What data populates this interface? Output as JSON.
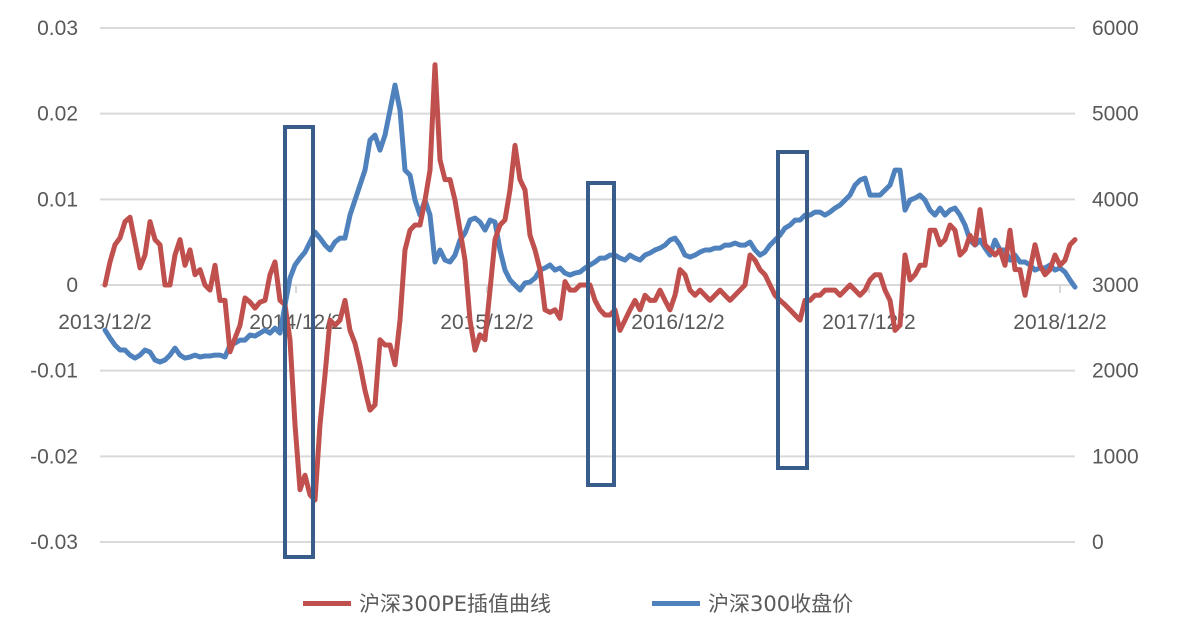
{
  "chart_data": {
    "type": "line",
    "title": "",
    "x_start": "2013/12/2",
    "x_step_note": "equally spaced samples from 2013/12/2 to end of 2018/12",
    "x_tick_labels": [
      "2013/12/2",
      "2014/12/2",
      "2015/12/2",
      "2016/12/2",
      "2017/12/2",
      "2018/12/2"
    ],
    "y_left": {
      "ticks": [
        "0.03",
        "0.02",
        "0.01",
        "0",
        "-0.01",
        "-0.02",
        "-0.03"
      ],
      "range": [
        -0.03,
        0.03
      ]
    },
    "y_right": {
      "ticks": [
        "6000",
        "5000",
        "4000",
        "3000",
        "2000",
        "1000",
        "0"
      ],
      "range": [
        0,
        6000
      ]
    },
    "grid": true,
    "legend_position": "bottom",
    "series": [
      {
        "name": "沪深300PE插值曲线",
        "axis": "left",
        "color": "#C0504D",
        "values": [
          0,
          0.0027,
          0.0047,
          0.0055,
          0.0074,
          0.0079,
          0.005,
          0.002,
          0.0035,
          0.0074,
          0.0053,
          0.0047,
          0,
          0,
          0.0035,
          0.0053,
          0.0023,
          0.0041,
          0.0012,
          0.0018,
          0,
          -0.0006,
          0.0023,
          -0.0018,
          -0.0018,
          -0.0078,
          -0.0062,
          -0.0047,
          -0.0015,
          -0.002,
          -0.0027,
          -0.002,
          -0.0018,
          0.0012,
          0.0027,
          -0.0018,
          -0.0023,
          -0.0064,
          -0.0163,
          -0.0239,
          -0.0222,
          -0.0245,
          -0.0251,
          -0.0163,
          -0.0105,
          -0.0041,
          -0.0047,
          -0.0041,
          -0.0018,
          -0.0053,
          -0.0068,
          -0.0093,
          -0.0123,
          -0.0146,
          -0.014,
          -0.0064,
          -0.007,
          -0.007,
          -0.0093,
          -0.0041,
          0.0041,
          0.0064,
          0.007,
          0.007,
          0.0099,
          0.0134,
          0.0257,
          0.0146,
          0.0123,
          0.0123,
          0.0099,
          0.0064,
          0.0029,
          -0.0041,
          -0.0076,
          -0.0058,
          -0.0064,
          -0.0006,
          0.0053,
          0.007,
          0.0076,
          0.0111,
          0.0163,
          0.0123,
          0.0111,
          0.0058,
          0.0041,
          0.0018,
          -0.0029,
          -0.0032,
          -0.0029,
          -0.0039,
          0.0004,
          -0.0006,
          -0.0006,
          0,
          0,
          0,
          -0.0018,
          -0.0029,
          -0.0035,
          -0.0035,
          -0.0029,
          -0.0053,
          -0.0041,
          -0.0029,
          -0.0018,
          -0.0029,
          -0.0012,
          -0.0018,
          -0.0018,
          -0.0006,
          -0.0018,
          -0.0029,
          -0.0012,
          0.0018,
          0.0012,
          -0.0006,
          -0.0012,
          -0.0006,
          -0.0012,
          -0.0018,
          -0.0012,
          -0.0006,
          -0.0012,
          -0.0018,
          -0.0012,
          -0.0006,
          0,
          0.0035,
          0.0029,
          0.0018,
          0.0012,
          0,
          -0.0012,
          -0.0018,
          -0.0023,
          -0.0029,
          -0.0035,
          -0.0041,
          -0.0018,
          -0.0018,
          -0.0012,
          -0.0012,
          -0.0006,
          -0.0006,
          -0.0006,
          -0.0012,
          -0.0006,
          0,
          -0.0006,
          -0.0012,
          -0.0006,
          0.0006,
          0.0012,
          0.0012,
          -0.0006,
          -0.0018,
          -0.0053,
          -0.0047,
          0.0035,
          0.0006,
          0.0012,
          0.0023,
          0.0023,
          0.0064,
          0.0064,
          0.0047,
          0.0053,
          0.007,
          0.0064,
          0.0035,
          0.0041,
          0.0058,
          0.0047,
          0.0088,
          0.0047,
          0.0041,
          0.0035,
          0.0041,
          0.0023,
          0.0064,
          0.0018,
          0.0018,
          -0.0012,
          0.0018,
          0.0047,
          0.0023,
          0.0012,
          0.0018,
          0.0035,
          0.0023,
          0.0029,
          0.0047,
          0.0053
        ]
      },
      {
        "name": "沪深300收盘价",
        "axis": "right",
        "color": "#4F81BD",
        "values": [
          2474,
          2381,
          2299,
          2241,
          2241,
          2182,
          2147,
          2182,
          2241,
          2217,
          2124,
          2101,
          2124,
          2182,
          2264,
          2182,
          2147,
          2159,
          2182,
          2159,
          2171,
          2171,
          2182,
          2182,
          2159,
          2299,
          2322,
          2357,
          2357,
          2416,
          2404,
          2439,
          2474,
          2439,
          2497,
          2439,
          2766,
          3081,
          3233,
          3314,
          3384,
          3501,
          3618,
          3548,
          3466,
          3408,
          3501,
          3548,
          3548,
          3816,
          3991,
          4166,
          4341,
          4691,
          4750,
          4575,
          4750,
          5041,
          5333,
          5041,
          4341,
          4283,
          3991,
          3816,
          3991,
          3816,
          3268,
          3408,
          3291,
          3268,
          3349,
          3524,
          3606,
          3758,
          3781,
          3734,
          3641,
          3758,
          3734,
          3408,
          3174,
          3058,
          2999,
          2941,
          3023,
          3034,
          3081,
          3174,
          3198,
          3233,
          3174,
          3198,
          3139,
          3116,
          3139,
          3151,
          3198,
          3233,
          3268,
          3314,
          3314,
          3349,
          3349,
          3314,
          3291,
          3349,
          3314,
          3291,
          3349,
          3373,
          3408,
          3431,
          3466,
          3524,
          3548,
          3466,
          3349,
          3326,
          3349,
          3384,
          3408,
          3408,
          3431,
          3431,
          3466,
          3466,
          3489,
          3466,
          3466,
          3501,
          3408,
          3349,
          3384,
          3466,
          3524,
          3583,
          3664,
          3699,
          3758,
          3758,
          3816,
          3816,
          3851,
          3851,
          3816,
          3851,
          3898,
          3933,
          3991,
          4049,
          4166,
          4225,
          4248,
          4049,
          4049,
          4049,
          4108,
          4166,
          4341,
          4341,
          3874,
          3991,
          4014,
          4049,
          3991,
          3874,
          3816,
          3898,
          3816,
          3874,
          3898,
          3816,
          3699,
          3524,
          3466,
          3524,
          3431,
          3349,
          3524,
          3408,
          3408,
          3291,
          3349,
          3268,
          3268,
          3233,
          3174,
          3198,
          3198,
          3233,
          3174,
          3198,
          3151,
          3058,
          2976
        ]
      }
    ],
    "annotations": [
      {
        "type": "box",
        "color": "#385D8A",
        "marks": "period around 2014/12"
      },
      {
        "type": "box",
        "color": "#385D8A",
        "marks": "period around 2016/08"
      },
      {
        "type": "box",
        "color": "#385D8A",
        "marks": "period around 2017/09"
      }
    ]
  }
}
